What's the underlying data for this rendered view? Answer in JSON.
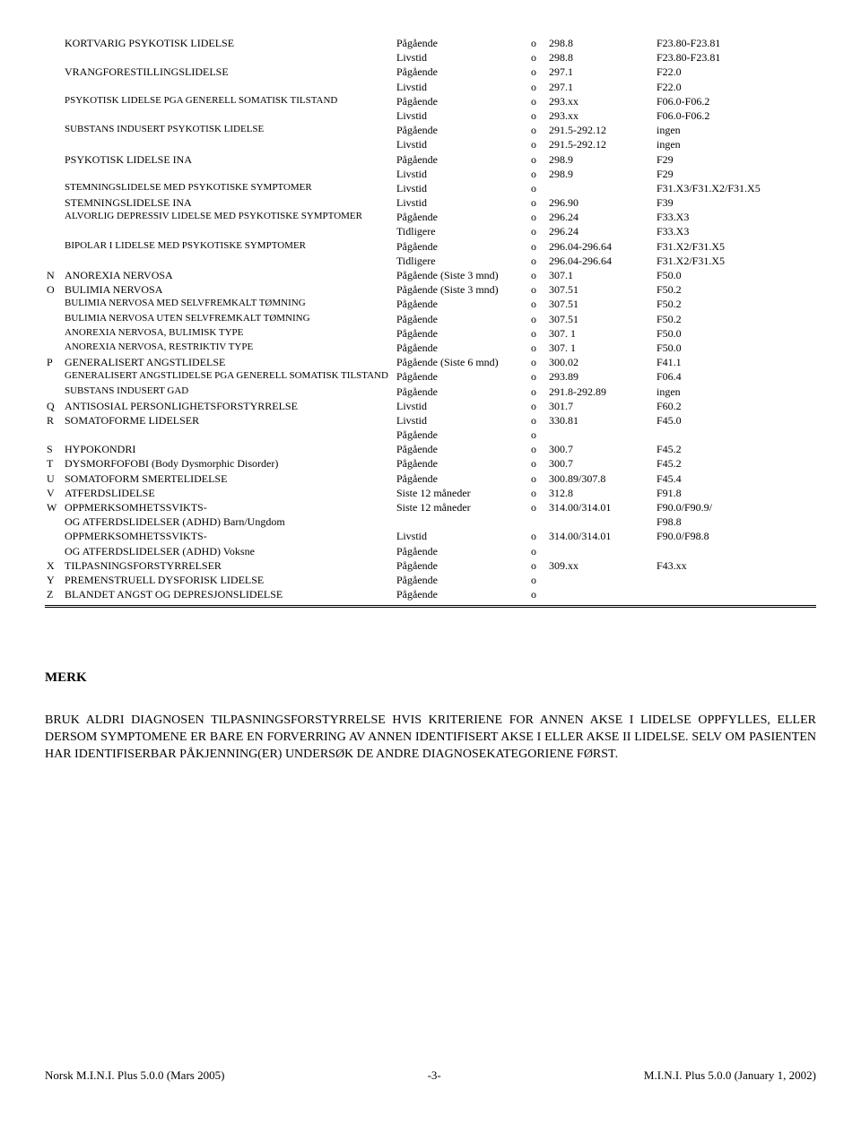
{
  "rows": [
    {
      "l": "",
      "n": "KORTVARIG PSYKOTISK LIDELSE",
      "p": "Pågående",
      "o": "o",
      "c1": "298.8",
      "c2": "F23.80-F23.81"
    },
    {
      "l": "",
      "n": "",
      "p": "Livstid",
      "o": "o",
      "c1": "298.8",
      "c2": "F23.80-F23.81"
    },
    {
      "l": "",
      "n": "VRANGFORESTILLINGSLIDELSE",
      "p": "Pågående",
      "o": "o",
      "c1": "297.1",
      "c2": "F22.0"
    },
    {
      "l": "",
      "n": "",
      "p": "Livstid",
      "o": "o",
      "c1": "297.1",
      "c2": "F22.0"
    },
    {
      "l": "",
      "n": "PSYKOTISK LIDELSE PGA GENERELL SOMATISK TILSTAND",
      "ns": true,
      "p": "Pågående",
      "o": "o",
      "c1": "293.xx",
      "c2": "F06.0-F06.2"
    },
    {
      "l": "",
      "n": "",
      "p": "Livstid",
      "o": "o",
      "c1": "293.xx",
      "c2": "F06.0-F06.2"
    },
    {
      "l": "",
      "n": "SUBSTANS INDUSERT PSYKOTISK LIDELSE",
      "ns": true,
      "p": "Pågående",
      "o": "o",
      "c1": "291.5-292.12",
      "c2": "ingen"
    },
    {
      "l": "",
      "n": "",
      "p": "Livstid",
      "o": "o",
      "c1": "291.5-292.12",
      "c2": "ingen"
    },
    {
      "l": "",
      "n": "PSYKOTISK LIDELSE INA",
      "p": "Pågående",
      "o": "o",
      "c1": "298.9",
      "c2": "F29"
    },
    {
      "l": "",
      "n": "",
      "p": "Livstid",
      "o": "o",
      "c1": "298.9",
      "c2": "F29"
    },
    {
      "l": "",
      "n": "STEMNINGSLIDELSE MED PSYKOTISKE SYMPTOMER",
      "ns": true,
      "p": "Livstid",
      "o": "o",
      "c1": "",
      "c2": "F31.X3/F31.X2/F31.X5"
    },
    {
      "l": "",
      "n": "STEMNINGSLIDELSE  INA",
      "p": "Livstid",
      "o": "o",
      "c1": "296.90",
      "c2": "F39"
    },
    {
      "l": "",
      "n": "ALVORLIG DEPRESSIV LIDELSE MED PSYKOTISKE SYMPTOMER",
      "ns": true,
      "p": "Pågående",
      "o": "o",
      "c1": "296.24",
      "c2": "F33.X3"
    },
    {
      "l": "",
      "n": "",
      "p": "Tidligere",
      "o": "o",
      "c1": "296.24",
      "c2": "F33.X3"
    },
    {
      "l": "",
      "n": "BIPOLAR I LIDELSE MED PSYKOTISKE SYMPTOMER",
      "ns": true,
      "p": "Pågående",
      "o": "o",
      "c1": "296.04-296.64",
      "c2": "F31.X2/F31.X5"
    },
    {
      "l": "",
      "n": "",
      "p": "Tidligere",
      "o": "o",
      "c1": "296.04-296.64",
      "c2": "F31.X2/F31.X5"
    },
    {
      "l": "N",
      "n": "ANOREXIA NERVOSA",
      "p": "Pågående (Siste 3 mnd)",
      "o": "o",
      "c1": "307.1",
      "c2": "F50.0"
    },
    {
      "l": "O",
      "n": "BULIMIA NERVOSA",
      "p": "Pågående (Siste 3 mnd)",
      "o": "o",
      "c1": "307.51",
      "c2": "F50.2"
    },
    {
      "l": "",
      "n": "BULIMIA NERVOSA MED SELVFREMKALT TØMNING",
      "ns": true,
      "p": "Pågående",
      "o": "o",
      "c1": "307.51",
      "c2": "F50.2"
    },
    {
      "l": "",
      "n": "BULIMIA NERVOSA UTEN SELVFREMKALT TØMNING",
      "ns": true,
      "p": "Pågående",
      "o": "o",
      "c1": "307.51",
      "c2": "F50.2"
    },
    {
      "l": "",
      "n": "ANOREXIA NERVOSA, BULIMISK TYPE",
      "ns": true,
      "p": "Pågående",
      "o": "o",
      "c1": "307. 1",
      "c2": "F50.0"
    },
    {
      "l": "",
      "n": "ANOREXIA NERVOSA, RESTRIKTIV TYPE",
      "ns": true,
      "p": "Pågående",
      "o": "o",
      "c1": "307. 1",
      "c2": "F50.0"
    },
    {
      "l": "P",
      "n": "GENERALISERT ANGSTLIDELSE",
      "p": "Pågående (Siste 6 mnd)",
      "o": "o",
      "c1": "300.02",
      "c2": "F41.1"
    },
    {
      "l": "",
      "n": "GENERALISERT ANGSTLIDELSE  PGA GENERELL SOMATISK TILSTAND",
      "ns": true,
      "p": "Pågående",
      "o": "o",
      "c1": "293.89",
      "c2": "F06.4"
    },
    {
      "l": "",
      "n": "SUBSTANS INDUSERT GAD",
      "ns": true,
      "p": "Pågående",
      "o": "o",
      "c1": "291.8-292.89",
      "c2": "ingen"
    },
    {
      "l": "Q",
      "n": "ANTISOSIAL PERSONLIGHETSFORSTYRRELSE",
      "p": "Livstid",
      "o": "o",
      "c1": "301.7",
      "c2": "F60.2"
    },
    {
      "l": "R",
      "n": "SOMATOFORME LIDELSER",
      "p": "Livstid",
      "o": "o",
      "c1": "330.81",
      "c2": "F45.0"
    },
    {
      "l": "",
      "n": "",
      "p": "Pågående",
      "o": "o",
      "c1": "",
      "c2": ""
    },
    {
      "l": "S",
      "n": "HYPOKONDRI",
      "p": "Pågående",
      "o": "o",
      "c1": "300.7",
      "c2": "F45.2"
    },
    {
      "l": "T",
      "n": "DYSMORFOFOBI (Body Dysmorphic Disorder)",
      "p": "Pågående",
      "o": "o",
      "c1": "300.7",
      "c2": "F45.2"
    },
    {
      "l": "U",
      "n": "SOMATOFORM SMERTELIDELSE",
      "p": "Pågående",
      "o": "o",
      "c1": "300.89/307.8",
      "c2": "F45.4"
    },
    {
      "l": "V",
      "n": "ATFERDSLIDELSE",
      "p": "Siste 12 måneder",
      "o": "o",
      "c1": "312.8",
      "c2": "F91.8"
    },
    {
      "l": "W",
      "n": "OPPMERKSOMHETSSVIKTS-\nOG ATFERDSLIDELSER (ADHD) Barn/Ungdom",
      "p": "Siste 12 måneder",
      "o": "o",
      "c1": "314.00/314.01",
      "c2": "F90.0/F90.9/\nF98.8"
    },
    {
      "l": "",
      "n": "OPPMERKSOMHETSSVIKTS-\nOG ATFERDSLIDELSER (ADHD) Voksne",
      "p": "Livstid\nPågående",
      "o": "o\no",
      "c1": "314.00/314.01",
      "c2": "F90.0/F98.8"
    },
    {
      "l": "X",
      "n": "TILPASNINGSFORSTYRRELSER",
      "p": "Pågående",
      "o": "o",
      "c1": "309.xx",
      "c2": "F43.xx"
    },
    {
      "l": "Y",
      "n": "PREMENSTRUELL DYSFORISK LIDELSE",
      "p": "Pågående",
      "o": "o",
      "c1": "",
      "c2": ""
    },
    {
      "l": "Z",
      "n": "BLANDET ANGST OG DEPRESJONSLIDELSE",
      "p": "Pågående",
      "o": "o",
      "c1": "",
      "c2": ""
    }
  ],
  "merk_heading": "MERK",
  "note_text": "BRUK ALDRI DIAGNOSEN TILPASNINGSFORSTYRRELSE HVIS KRITERIENE FOR ANNEN AKSE I LIDELSE OPPFYLLES, ELLER DERSOM SYMPTOMENE ER BARE EN FORVERRING AV ANNEN IDENTIFISERT AKSE I ELLER AKSE II LIDELSE. SELV OM PASIENTEN HAR IDENTIFISERBAR PÅKJENNING(ER) UNDERSØK DE ANDRE DIAGNOSEKATEGORIENE FØRST.",
  "footer_left": "Norsk M.I.N.I. Plus 5.0.0 (Mars 2005)",
  "footer_center": "-3-",
  "footer_right": "M.I.N.I. Plus 5.0.0 (January 1, 2002)"
}
